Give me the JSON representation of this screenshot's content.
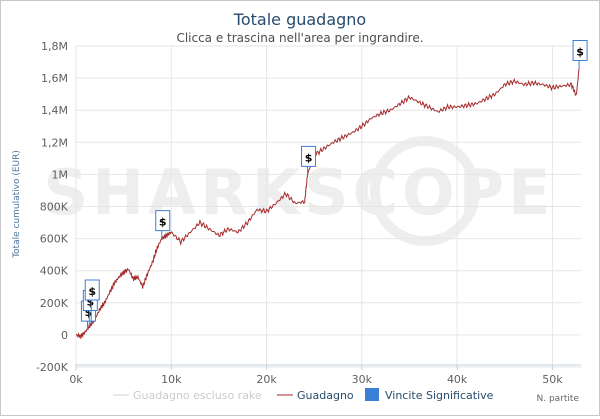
{
  "chart_data": {
    "type": "line",
    "title": "Totale guadagno",
    "subtitle": "Clicca e trascina nell'area per ingrandire.",
    "ylabel": "Totale cumulativo (EUR)",
    "xlabel": "N. partite",
    "watermark": "SHARKSCOPE",
    "xlim": [
      0,
      53000
    ],
    "ylim": [
      -200000,
      1800000
    ],
    "x_ticks": [
      {
        "value": 0,
        "label": "0k"
      },
      {
        "value": 10000,
        "label": "10k"
      },
      {
        "value": 20000,
        "label": "20k"
      },
      {
        "value": 30000,
        "label": "30k"
      },
      {
        "value": 40000,
        "label": "40k"
      },
      {
        "value": 50000,
        "label": "50k"
      }
    ],
    "y_ticks": [
      {
        "value": -200000,
        "label": "-200K"
      },
      {
        "value": 0,
        "label": "0"
      },
      {
        "value": 200000,
        "label": "200K"
      },
      {
        "value": 400000,
        "label": "400K"
      },
      {
        "value": 600000,
        "label": "600K"
      },
      {
        "value": 800000,
        "label": "800K"
      },
      {
        "value": 1000000,
        "label": "1M"
      },
      {
        "value": 1200000,
        "label": "1,2M"
      },
      {
        "value": 1400000,
        "label": "1,4M"
      },
      {
        "value": 1600000,
        "label": "1,6M"
      },
      {
        "value": 1800000,
        "label": "1,8M"
      }
    ],
    "grid": true,
    "legend_position": "bottom",
    "series": [
      {
        "name": "Guadagno escluso rake",
        "color": "#d0d0d0",
        "points": []
      },
      {
        "name": "Guadagno",
        "color": "#a52a2a",
        "points": [
          [
            0,
            0
          ],
          [
            500,
            -10000
          ],
          [
            1000,
            20000
          ],
          [
            1500,
            60000
          ],
          [
            2000,
            100000
          ],
          [
            2500,
            160000
          ],
          [
            3000,
            200000
          ],
          [
            3500,
            260000
          ],
          [
            4000,
            320000
          ],
          [
            4500,
            360000
          ],
          [
            5000,
            390000
          ],
          [
            5500,
            410000
          ],
          [
            6000,
            350000
          ],
          [
            6500,
            360000
          ],
          [
            7000,
            300000
          ],
          [
            7500,
            380000
          ],
          [
            8000,
            450000
          ],
          [
            8500,
            540000
          ],
          [
            9000,
            600000
          ],
          [
            9500,
            620000
          ],
          [
            10000,
            640000
          ],
          [
            11000,
            580000
          ],
          [
            12000,
            640000
          ],
          [
            13000,
            700000
          ],
          [
            14000,
            660000
          ],
          [
            15000,
            620000
          ],
          [
            16000,
            660000
          ],
          [
            17000,
            640000
          ],
          [
            18000,
            700000
          ],
          [
            19000,
            780000
          ],
          [
            20000,
            770000
          ],
          [
            21000,
            820000
          ],
          [
            22000,
            880000
          ],
          [
            23000,
            820000
          ],
          [
            24000,
            830000
          ],
          [
            24300,
            1000000
          ],
          [
            25000,
            1120000
          ],
          [
            26000,
            1160000
          ],
          [
            27000,
            1200000
          ],
          [
            28000,
            1230000
          ],
          [
            29000,
            1260000
          ],
          [
            30000,
            1300000
          ],
          [
            31000,
            1350000
          ],
          [
            32000,
            1380000
          ],
          [
            33000,
            1400000
          ],
          [
            34000,
            1440000
          ],
          [
            35000,
            1480000
          ],
          [
            36000,
            1450000
          ],
          [
            37000,
            1420000
          ],
          [
            38000,
            1390000
          ],
          [
            39000,
            1420000
          ],
          [
            40000,
            1420000
          ],
          [
            41000,
            1430000
          ],
          [
            42000,
            1440000
          ],
          [
            43000,
            1470000
          ],
          [
            44000,
            1500000
          ],
          [
            45000,
            1560000
          ],
          [
            46000,
            1580000
          ],
          [
            47000,
            1560000
          ],
          [
            48000,
            1570000
          ],
          [
            49000,
            1560000
          ],
          [
            50000,
            1540000
          ],
          [
            51000,
            1550000
          ],
          [
            52000,
            1560000
          ],
          [
            52500,
            1490000
          ],
          [
            52800,
            1660000
          ]
        ]
      }
    ],
    "markers": {
      "name": "Vincite Significative",
      "color": "#3b7fd6",
      "symbol": "$",
      "x": [
        1200,
        1400,
        1600,
        9000,
        24300,
        52800
      ]
    }
  }
}
